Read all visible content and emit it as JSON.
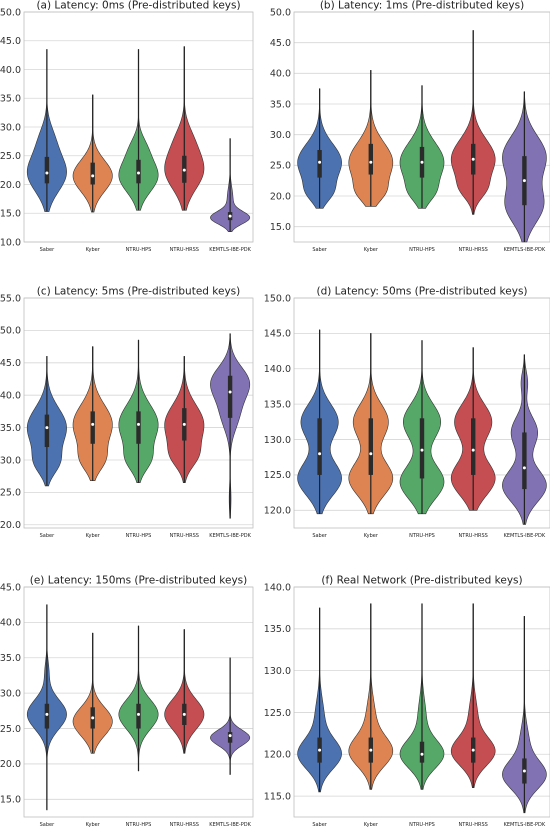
{
  "colors": {
    "Saber": "#4c72b0",
    "Kyber": "#dd8452",
    "NTRU-HPS": "#55a868",
    "NTRU-HRSS": "#c44e52",
    "KEMTLS-IBE-PDK": "#8172b3"
  },
  "chart_data": [
    {
      "type": "violin",
      "title": "(a) Latency: 0ms (Pre-distributed keys)",
      "categories": [
        "Saber",
        "Kyber",
        "NTRU-HPS",
        "NTRU-HRSS",
        "KEMTLS-IBE-PDK"
      ],
      "ylim": [
        10,
        50
      ],
      "yticks": [
        "10.0",
        "15.0",
        "20.0",
        "25.0",
        "30.0",
        "35.0",
        "40.0",
        "45.0",
        "50.0"
      ],
      "grid": true,
      "series": [
        {
          "min": 15.3,
          "max": 43.5,
          "q1": 20.2,
          "median": 22.0,
          "q3": 24.8,
          "modes": [
            [
              22,
              3.2,
              1
            ],
            [
              28,
              2.5,
              0.3
            ]
          ]
        },
        {
          "min": 15.2,
          "max": 35.6,
          "q1": 20.0,
          "median": 21.5,
          "q3": 23.8,
          "modes": [
            [
              21.5,
              2.7,
              1
            ]
          ]
        },
        {
          "min": 15.5,
          "max": 43.5,
          "q1": 20.2,
          "median": 22.0,
          "q3": 24.3,
          "modes": [
            [
              21.5,
              2.8,
              1
            ],
            [
              26.5,
              2,
              0.3
            ]
          ]
        },
        {
          "min": 15.5,
          "max": 44.0,
          "q1": 20.3,
          "median": 22.5,
          "q3": 25.0,
          "modes": [
            [
              22.5,
              3.3,
              1
            ],
            [
              28,
              2.5,
              0.3
            ]
          ]
        },
        {
          "min": 11.8,
          "max": 28.0,
          "q1": 13.8,
          "median": 14.5,
          "q3": 15.2,
          "modes": [
            [
              14.2,
              1.1,
              1
            ],
            [
              17.5,
              2,
              0.15
            ]
          ]
        }
      ]
    },
    {
      "type": "violin",
      "title": "(b) Latency: 1ms (Pre-distributed keys)",
      "categories": [
        "Saber",
        "Kyber",
        "NTRU-HPS",
        "NTRU-HRSS",
        "KEMTLS-IBE-PDK"
      ],
      "ylim": [
        12.5,
        50
      ],
      "yticks": [
        "15.0",
        "20.0",
        "25.0",
        "30.0",
        "35.0",
        "40.0",
        "45.0",
        "50.0"
      ],
      "grid": true,
      "series": [
        {
          "min": 18.0,
          "max": 37.5,
          "q1": 23.0,
          "median": 25.5,
          "q3": 27.5,
          "modes": [
            [
              25.5,
              3,
              1
            ],
            [
              20.5,
              1.6,
              0.4
            ]
          ]
        },
        {
          "min": 18.3,
          "max": 40.5,
          "q1": 23.5,
          "median": 25.5,
          "q3": 28.5,
          "modes": [
            [
              25.5,
              3.2,
              1
            ],
            [
              20.5,
              1.6,
              0.4
            ]
          ]
        },
        {
          "min": 18.0,
          "max": 38.0,
          "q1": 23.0,
          "median": 25.5,
          "q3": 28.0,
          "modes": [
            [
              25.5,
              3.2,
              1
            ],
            [
              20.5,
              1.6,
              0.35
            ]
          ]
        },
        {
          "min": 17.0,
          "max": 47.0,
          "q1": 23.5,
          "median": 26.0,
          "q3": 28.5,
          "modes": [
            [
              26,
              3.2,
              1
            ],
            [
              21,
              1.6,
              0.35
            ]
          ]
        },
        {
          "min": 12.5,
          "max": 37.0,
          "q1": 18.5,
          "median": 22.5,
          "q3": 26.5,
          "modes": [
            [
              18.5,
              3,
              0.6
            ],
            [
              26.5,
              3.3,
              0.7
            ]
          ]
        }
      ]
    },
    {
      "type": "violin",
      "title": "(c) Latency: 5ms (Pre-distributed keys)",
      "categories": [
        "Saber",
        "Kyber",
        "NTRU-HPS",
        "NTRU-HRSS",
        "KEMTLS-IBE-PDK"
      ],
      "ylim": [
        19.5,
        55
      ],
      "yticks": [
        "20.0",
        "25.0",
        "30.0",
        "35.0",
        "40.0",
        "45.0",
        "50.0",
        "55.0"
      ],
      "grid": true,
      "series": [
        {
          "min": 26.0,
          "max": 46.0,
          "q1": 32.0,
          "median": 35.0,
          "q3": 37.0,
          "modes": [
            [
              35,
              3,
              1
            ],
            [
              29.5,
              1.8,
              0.5
            ]
          ]
        },
        {
          "min": 26.8,
          "max": 47.5,
          "q1": 32.5,
          "median": 35.5,
          "q3": 37.5,
          "modes": [
            [
              35.5,
              3,
              1
            ],
            [
              30,
              1.8,
              0.5
            ]
          ]
        },
        {
          "min": 26.5,
          "max": 48.5,
          "q1": 32.5,
          "median": 35.5,
          "q3": 37.5,
          "modes": [
            [
              35.5,
              3,
              1
            ],
            [
              30,
              1.8,
              0.5
            ]
          ]
        },
        {
          "min": 26.5,
          "max": 46.0,
          "q1": 33.0,
          "median": 35.5,
          "q3": 38.0,
          "modes": [
            [
              35.5,
              3,
              1
            ],
            [
              30.5,
              1.8,
              0.5
            ]
          ]
        },
        {
          "min": 21.0,
          "max": 49.5,
          "q1": 36.5,
          "median": 40.5,
          "q3": 43.0,
          "modes": [
            [
              42,
              2.4,
              1
            ],
            [
              37,
              2.5,
              0.45
            ],
            [
              24,
              2,
              0.05
            ]
          ]
        }
      ]
    },
    {
      "type": "violin",
      "title": "(d) Latency: 50ms (Pre-distributed keys)",
      "categories": [
        "Saber",
        "Kyber",
        "NTRU-HPS",
        "NTRU-HRSS",
        "KEMTLS-IBE-PDK"
      ],
      "ylim": [
        117.5,
        150
      ],
      "yticks": [
        "120.0",
        "125.0",
        "130.0",
        "135.0",
        "140.0",
        "145.0",
        "150.0"
      ],
      "grid": true,
      "series": [
        {
          "min": 119.5,
          "max": 145.5,
          "q1": 125.0,
          "median": 128.0,
          "q3": 133.0,
          "modes": [
            [
              124.5,
              2.4,
              1
            ],
            [
              132.5,
              2.5,
              0.85
            ]
          ]
        },
        {
          "min": 119.5,
          "max": 145.0,
          "q1": 125.0,
          "median": 128.0,
          "q3": 133.0,
          "modes": [
            [
              124.5,
              2.4,
              1
            ],
            [
              132.5,
              2.5,
              0.8
            ]
          ]
        },
        {
          "min": 119.5,
          "max": 144.0,
          "q1": 124.5,
          "median": 128.5,
          "q3": 133.0,
          "modes": [
            [
              124,
              2.4,
              1
            ],
            [
              132.5,
              2.5,
              0.85
            ]
          ]
        },
        {
          "min": 120.0,
          "max": 143.0,
          "q1": 125.0,
          "median": 128.5,
          "q3": 133.0,
          "modes": [
            [
              124.5,
              2.4,
              1
            ],
            [
              132.5,
              2.5,
              0.85
            ]
          ]
        },
        {
          "min": 118.0,
          "max": 142.0,
          "q1": 123.0,
          "median": 126.0,
          "q3": 131.0,
          "modes": [
            [
              123.5,
              2.3,
              1
            ],
            [
              131,
              2.2,
              0.6
            ],
            [
              138,
              1.6,
              0.15
            ]
          ]
        }
      ]
    },
    {
      "type": "violin",
      "title": "(e) Latency: 150ms (Pre-distributed keys)",
      "categories": [
        "Saber",
        "Kyber",
        "NTRU-HPS",
        "NTRU-HRSS",
        "KEMTLS-IBE-PDK"
      ],
      "ylim": [
        312.5,
        345
      ],
      "yticks": [
        "315.0",
        "320.0",
        "325.0",
        "330.0",
        "335.0",
        "340.0",
        "345.0"
      ],
      "grid": true,
      "series": [
        {
          "min": 313.5,
          "max": 342.5,
          "q1": 325.0,
          "median": 327.0,
          "q3": 328.5,
          "modes": [
            [
              327,
              2.1,
              1
            ],
            [
              333,
              1.6,
              0.1
            ]
          ]
        },
        {
          "min": 321.5,
          "max": 338.5,
          "q1": 325.0,
          "median": 326.5,
          "q3": 328.0,
          "modes": [
            [
              326,
              2,
              1
            ]
          ]
        },
        {
          "min": 319.0,
          "max": 339.5,
          "q1": 325.0,
          "median": 327.0,
          "q3": 328.5,
          "modes": [
            [
              327,
              2.1,
              1
            ]
          ]
        },
        {
          "min": 321.5,
          "max": 339.0,
          "q1": 325.5,
          "median": 327.0,
          "q3": 328.5,
          "modes": [
            [
              327,
              2.1,
              1
            ]
          ]
        },
        {
          "min": 318.5,
          "max": 335.0,
          "q1": 323.0,
          "median": 324.0,
          "q3": 324.5,
          "modes": [
            [
              323.7,
              1.1,
              1
            ]
          ]
        }
      ]
    },
    {
      "type": "violin",
      "title": "(f) Real Network (Pre-distributed keys)",
      "categories": [
        "Saber",
        "Kyber",
        "NTRU-HPS",
        "NTRU-HRSS",
        "KEMTLS-IBE-PDK"
      ],
      "ylim": [
        112.5,
        140
      ],
      "yticks": [
        "115.0",
        "120.0",
        "125.0",
        "130.0",
        "135.0",
        "140.0"
      ],
      "grid": true,
      "series": [
        {
          "min": 115.5,
          "max": 137.5,
          "q1": 119.0,
          "median": 120.5,
          "q3": 122.0,
          "modes": [
            [
              120,
              1.8,
              1
            ],
            [
              124.5,
              2.2,
              0.2
            ]
          ]
        },
        {
          "min": 115.8,
          "max": 138.0,
          "q1": 119.0,
          "median": 120.5,
          "q3": 122.0,
          "modes": [
            [
              120.3,
              1.8,
              1
            ],
            [
              124.5,
              2.2,
              0.2
            ]
          ]
        },
        {
          "min": 115.8,
          "max": 138.0,
          "q1": 119.0,
          "median": 120.0,
          "q3": 121.5,
          "modes": [
            [
              120,
              1.7,
              1
            ],
            [
              124.5,
              2.2,
              0.18
            ]
          ]
        },
        {
          "min": 116.0,
          "max": 138.0,
          "q1": 119.0,
          "median": 120.5,
          "q3": 122.0,
          "modes": [
            [
              120.3,
              1.7,
              1
            ],
            [
              124.5,
              2.2,
              0.2
            ]
          ]
        },
        {
          "min": 113.0,
          "max": 136.5,
          "q1": 116.5,
          "median": 118.0,
          "q3": 119.5,
          "modes": [
            [
              117.5,
              1.7,
              1
            ],
            [
              121.5,
              2,
              0.2
            ]
          ]
        }
      ]
    }
  ]
}
